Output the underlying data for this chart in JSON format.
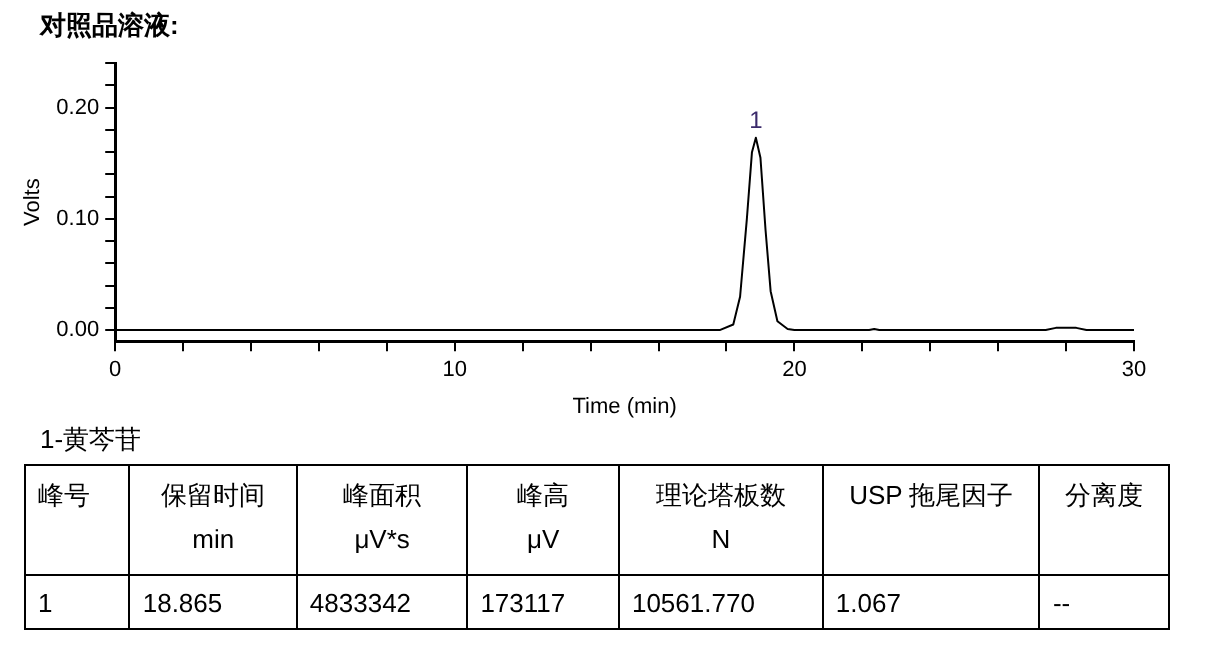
{
  "chart_data": {
    "type": "line",
    "title": "对照品溶液:",
    "xlabel": "Time (min)",
    "ylabel": "Volts",
    "x": [
      0,
      5,
      10,
      15,
      17.8,
      18.2,
      18.4,
      18.6,
      18.75,
      18.865,
      19.0,
      19.15,
      19.3,
      19.5,
      19.8,
      20,
      22.2,
      22.35,
      22.5,
      27.4,
      27.7,
      28.3,
      28.6,
      30
    ],
    "series": [
      {
        "color": "#000000",
        "values": [
          0,
          0,
          0,
          0,
          0,
          0.005,
          0.03,
          0.1,
          0.16,
          0.173,
          0.155,
          0.09,
          0.035,
          0.008,
          0.001,
          0,
          0,
          0.001,
          0,
          0,
          0.002,
          0.002,
          0,
          0
        ]
      }
    ],
    "xlim": [
      0,
      30
    ],
    "ylim": [
      -0.01,
      0.24
    ],
    "xticks": [
      0,
      {
        "value": 2,
        "label": null
      },
      {
        "value": 4,
        "label": null
      },
      {
        "value": 6,
        "label": null
      },
      {
        "value": 8,
        "label": null
      },
      10,
      {
        "value": 12,
        "label": null
      },
      {
        "value": 14,
        "label": null
      },
      {
        "value": 16,
        "label": null
      },
      {
        "value": 18,
        "label": null
      },
      20,
      {
        "value": 22,
        "label": null
      },
      {
        "value": 24,
        "label": null
      },
      {
        "value": 26,
        "label": null
      },
      {
        "value": 28,
        "label": null
      },
      30
    ],
    "yticks": [
      {
        "value": 0,
        "label": "0.00"
      },
      {
        "value": 0.02,
        "label": null
      },
      {
        "value": 0.04,
        "label": null
      },
      {
        "value": 0.06,
        "label": null
      },
      {
        "value": 0.08,
        "label": null
      },
      {
        "value": 0.1,
        "label": "0.10"
      },
      {
        "value": 0.12,
        "label": null
      },
      {
        "value": 0.14,
        "label": null
      },
      {
        "value": 0.16,
        "label": null
      },
      {
        "value": 0.18,
        "label": null
      },
      {
        "value": 0.2,
        "label": "0.20"
      },
      {
        "value": 0.22,
        "label": null
      },
      {
        "value": 0.24,
        "label": null
      }
    ],
    "legend": false,
    "annotations": [
      {
        "text": "1",
        "x": 18.865,
        "y": 0.173
      },
      "1-黄芩苷",
      "峰号",
      "保留时间\nmin",
      "峰面积\nμV*s",
      "峰高\nμV",
      "理论塔板数\nN",
      "USP 拖尾因子",
      "分离度",
      "1",
      "18.865",
      "4833342",
      "173117",
      "10561.770",
      "1.067",
      "--"
    ]
  }
}
